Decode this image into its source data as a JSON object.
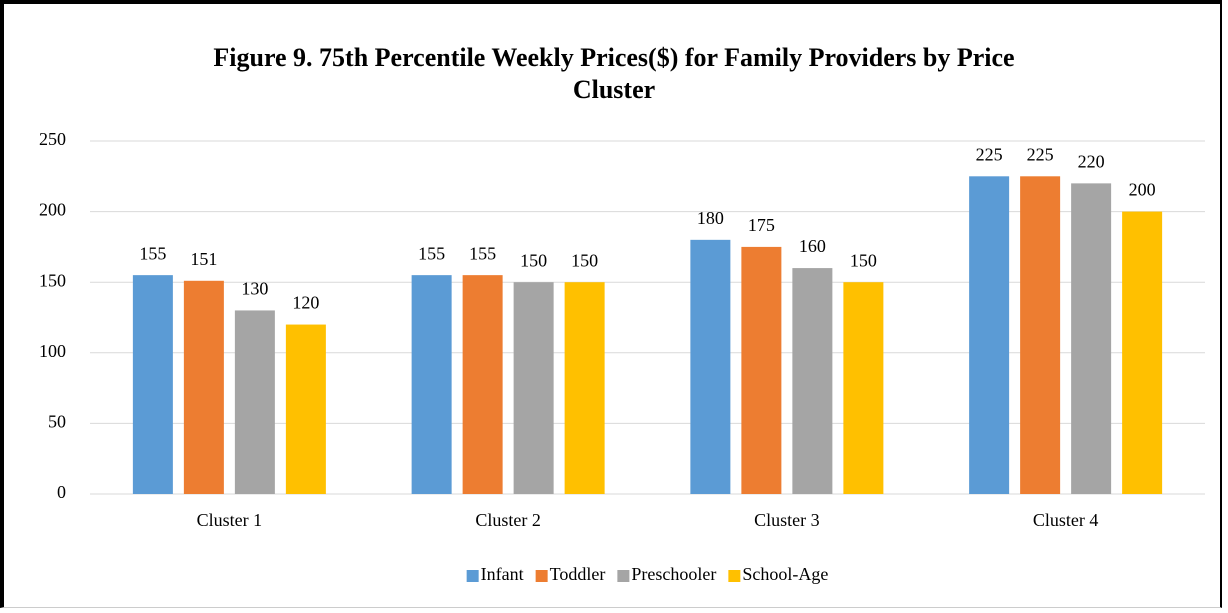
{
  "chart_data": {
    "type": "bar",
    "title": "Figure 9. 75th Percentile Weekly Prices($) for Family Providers by Price Cluster",
    "categories": [
      "Cluster 1",
      "Cluster 2",
      "Cluster 3",
      "Cluster 4"
    ],
    "series": [
      {
        "name": "Infant",
        "color": "#5b9bd5",
        "values": [
          155,
          155,
          180,
          225
        ]
      },
      {
        "name": "Toddler",
        "color": "#ed7d31",
        "values": [
          151,
          155,
          175,
          225
        ]
      },
      {
        "name": "Preschooler",
        "color": "#a5a5a5",
        "values": [
          130,
          150,
          160,
          220
        ]
      },
      {
        "name": "School-Age",
        "color": "#ffc000",
        "values": [
          120,
          150,
          150,
          200
        ]
      }
    ],
    "ylim": [
      0,
      250
    ],
    "yticks": [
      0,
      50,
      100,
      150,
      200,
      250
    ],
    "grid": true,
    "legend": "bottom"
  }
}
